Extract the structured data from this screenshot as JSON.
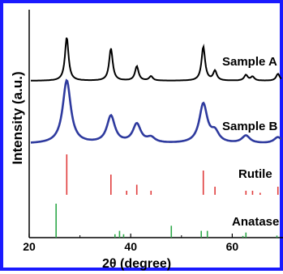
{
  "chart_data": {
    "type": "line",
    "xlabel": "2θ (degree)",
    "ylabel": "Intensity (a.u.)",
    "xlim": [
      20,
      70
    ],
    "x_ticks": [
      20,
      40,
      60
    ],
    "grid": false,
    "series": [
      {
        "name": "Sample A",
        "color": "#000000",
        "style": "line",
        "baseline_level": 0.88,
        "peaks": [
          {
            "x": 27.4,
            "height": 1.0
          },
          {
            "x": 36.1,
            "height": 0.74
          },
          {
            "x": 41.2,
            "height": 0.33
          },
          {
            "x": 44.0,
            "height": 0.1
          },
          {
            "x": 54.3,
            "height": 0.78
          },
          {
            "x": 56.6,
            "height": 0.22
          },
          {
            "x": 62.7,
            "height": 0.13
          },
          {
            "x": 64.0,
            "height": 0.09
          },
          {
            "x": 69.0,
            "height": 0.16
          }
        ]
      },
      {
        "name": "Sample B",
        "color": "#2e3a9e",
        "style": "line",
        "peaks": [
          {
            "x": 27.4,
            "height": 1.0
          },
          {
            "x": 36.1,
            "height": 0.43
          },
          {
            "x": 41.2,
            "height": 0.3
          },
          {
            "x": 44.0,
            "height": 0.08
          },
          {
            "x": 54.3,
            "height": 0.62
          },
          {
            "x": 56.6,
            "height": 0.16
          },
          {
            "x": 62.7,
            "height": 0.12
          },
          {
            "x": 69.0,
            "height": 0.1
          }
        ]
      },
      {
        "name": "Rutile",
        "color": "#e03c3c",
        "style": "sticks",
        "peaks": [
          {
            "x": 27.4,
            "height": 1.0
          },
          {
            "x": 36.1,
            "height": 0.5
          },
          {
            "x": 39.2,
            "height": 0.1
          },
          {
            "x": 41.2,
            "height": 0.25
          },
          {
            "x": 44.0,
            "height": 0.1
          },
          {
            "x": 54.3,
            "height": 0.6
          },
          {
            "x": 56.6,
            "height": 0.2
          },
          {
            "x": 62.7,
            "height": 0.1
          },
          {
            "x": 64.0,
            "height": 0.1
          },
          {
            "x": 65.5,
            "height": 0.05
          },
          {
            "x": 69.0,
            "height": 0.2
          }
        ]
      },
      {
        "name": "Anatase",
        "color": "#2ea84a",
        "style": "sticks",
        "peaks": [
          {
            "x": 25.3,
            "height": 1.0
          },
          {
            "x": 36.9,
            "height": 0.1
          },
          {
            "x": 37.8,
            "height": 0.2
          },
          {
            "x": 38.6,
            "height": 0.1
          },
          {
            "x": 48.0,
            "height": 0.35
          },
          {
            "x": 53.9,
            "height": 0.2
          },
          {
            "x": 55.1,
            "height": 0.2
          },
          {
            "x": 62.1,
            "height": 0.05
          },
          {
            "x": 62.7,
            "height": 0.15
          },
          {
            "x": 68.8,
            "height": 0.06
          },
          {
            "x": 70.3,
            "height": 0.06
          }
        ]
      }
    ]
  }
}
